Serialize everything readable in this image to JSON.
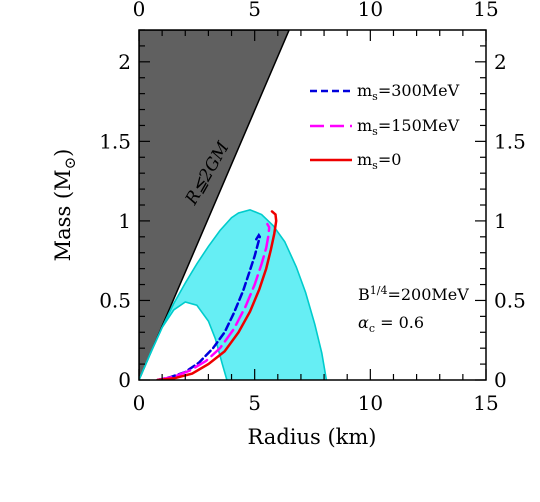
{
  "chart_data": {
    "type": "line",
    "xlabel": "Radius (km)",
    "ylabel": "Mass (M",
    "ylabel_symbol": "⊙",
    "ylabel_close": ")",
    "xlim": [
      0,
      15
    ],
    "ylim": [
      0,
      2.2
    ],
    "x_ticks": [
      {
        "value": 0,
        "label": "0"
      },
      {
        "value": 5,
        "label": "5"
      },
      {
        "value": 10,
        "label": "10"
      },
      {
        "value": 15,
        "label": "15"
      }
    ],
    "y_ticks": [
      {
        "value": 0,
        "label": "0"
      },
      {
        "value": 0.5,
        "label": "0.5"
      },
      {
        "value": 1,
        "label": "1"
      },
      {
        "value": 1.5,
        "label": "1.5"
      },
      {
        "value": 2,
        "label": "2"
      }
    ],
    "grid": false,
    "legend_position": "top-right",
    "forbidden_region": {
      "label": "R≦2GM",
      "color": "#606060",
      "boundary_slope_mass_per_km": 0.339
    },
    "bands": [
      {
        "color": "#66eef4",
        "edge_color": "#00cccc",
        "upper": {
          "x": [
            0,
            0.5,
            1,
            1.5,
            2,
            2.5,
            3,
            3.5,
            4,
            4.3,
            4.8,
            5.3,
            5.8,
            6.3,
            6.8,
            7.2,
            7.6,
            7.9,
            8.1
          ],
          "y": [
            0,
            0.17,
            0.33,
            0.48,
            0.61,
            0.73,
            0.84,
            0.94,
            1.02,
            1.05,
            1.07,
            1.04,
            0.97,
            0.87,
            0.71,
            0.55,
            0.35,
            0.17,
            0
          ]
        },
        "lower": {
          "x": [
            0,
            0.5,
            1,
            1.5,
            2,
            2.5,
            3,
            3.3,
            3.6,
            3.8
          ],
          "y": [
            0,
            0.17,
            0.33,
            0.44,
            0.49,
            0.47,
            0.37,
            0.26,
            0.1,
            0
          ]
        }
      }
    ],
    "series": [
      {
        "name": "m_s=300MeV",
        "color": "#0000dd",
        "dash": "dashed",
        "x": [
          0.8,
          1.4,
          2.0,
          2.6,
          3.2,
          3.7,
          4.1,
          4.5,
          4.8,
          5.0,
          5.15,
          5.22,
          5.18,
          5.05
        ],
        "y": [
          0.0,
          0.02,
          0.05,
          0.11,
          0.2,
          0.3,
          0.42,
          0.56,
          0.69,
          0.78,
          0.86,
          0.9,
          0.91,
          0.88
        ]
      },
      {
        "name": "m_s=150MeV",
        "color": "#ff00ff",
        "dash": "long-dashed",
        "x": [
          0.8,
          1.5,
          2.2,
          2.9,
          3.5,
          4.1,
          4.6,
          5.0,
          5.3,
          5.5,
          5.6,
          5.63,
          5.55
        ],
        "y": [
          0.0,
          0.02,
          0.06,
          0.12,
          0.2,
          0.32,
          0.46,
          0.6,
          0.73,
          0.83,
          0.91,
          0.96,
          0.98
        ]
      },
      {
        "name": "m_s=0",
        "color": "#ee0000",
        "dash": "solid",
        "x": [
          0.8,
          1.5,
          2.3,
          3.0,
          3.7,
          4.3,
          4.8,
          5.2,
          5.5,
          5.7,
          5.85,
          5.93,
          5.9,
          5.75
        ],
        "y": [
          0.0,
          0.01,
          0.04,
          0.1,
          0.18,
          0.3,
          0.43,
          0.57,
          0.7,
          0.82,
          0.92,
          1.0,
          1.04,
          1.06
        ]
      }
    ],
    "legend": [
      {
        "prefix": "m",
        "sub": "s",
        "value": "=300MeV",
        "color": "#0000dd"
      },
      {
        "prefix": "m",
        "sub": "s",
        "value": "=150MeV",
        "color": "#ff00ff"
      },
      {
        "prefix": "m",
        "sub": "s",
        "value": "=0",
        "color": "#ee0000"
      }
    ],
    "annotations": {
      "bag": {
        "prefix": "B",
        "sup": "1/4",
        "value": "=200MeV"
      },
      "alpha": {
        "symbol": "α",
        "sub": "c",
        "value": " =  0.6"
      }
    }
  }
}
